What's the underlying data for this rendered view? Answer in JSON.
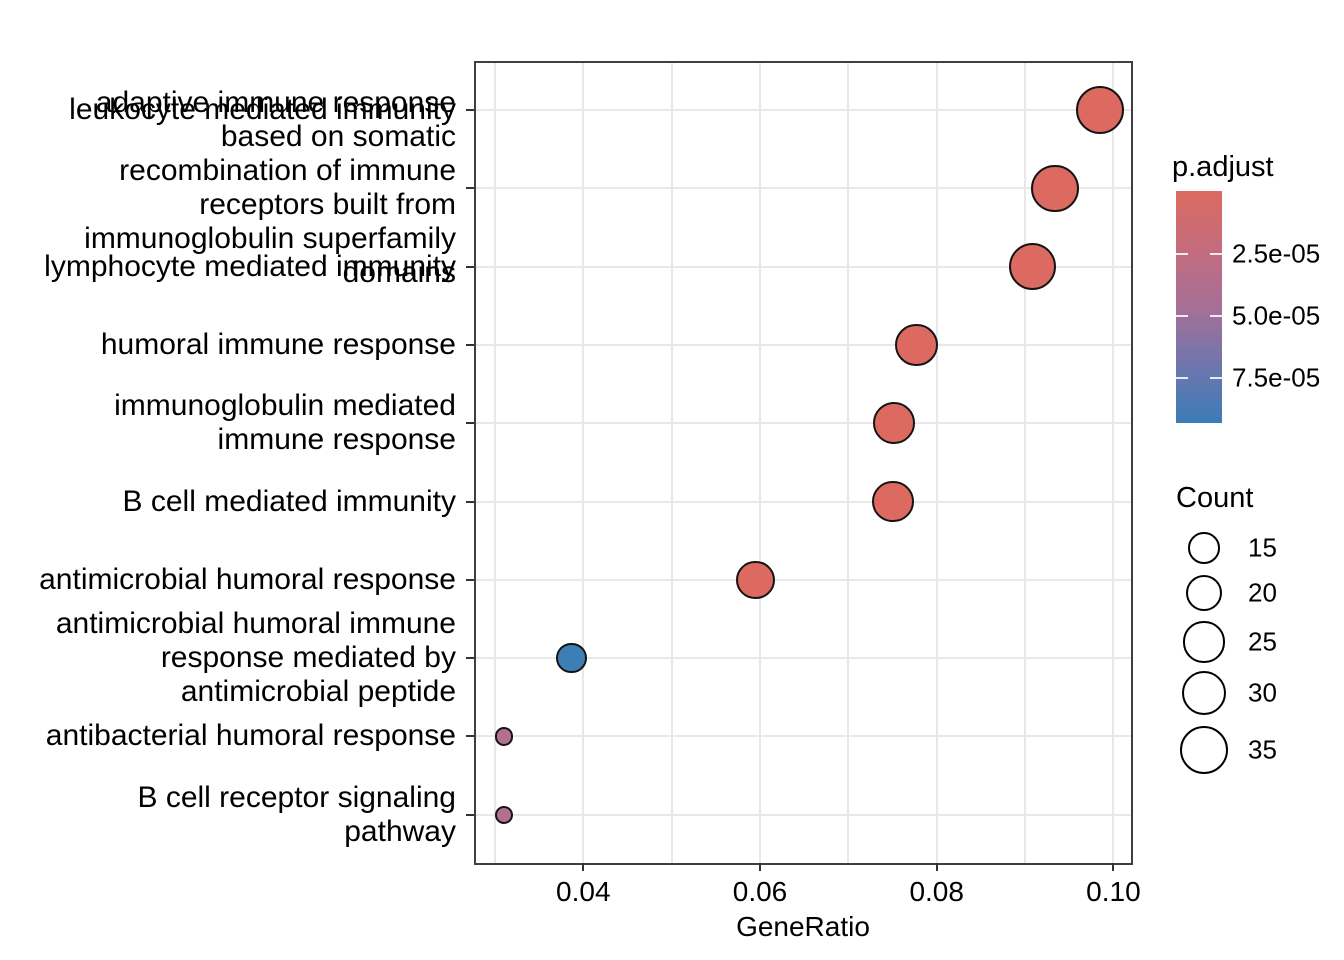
{
  "figure": {
    "background": "#ffffff",
    "text_color": "#000000",
    "grid_color": "#e8e8e8",
    "panel_border_color": "#3f3f3f"
  },
  "chart_data": {
    "type": "scatter",
    "subtype": "go-enrichment-dotplot",
    "title": "",
    "xlabel": "GeneRatio",
    "ylabel": "",
    "grid": "on",
    "legend_position": "right",
    "xlim": [
      0.0279,
      0.102
    ],
    "x_ticks": [
      0.04,
      0.06,
      0.08,
      0.1
    ],
    "x_tick_labels": [
      "0.04",
      "0.06",
      "0.08",
      "0.10"
    ],
    "x_gridlines": [
      0.03,
      0.04,
      0.05,
      0.06,
      0.07,
      0.08,
      0.09,
      0.1
    ],
    "categories": [
      "leukocyte mediated immunity",
      "adaptive immune response based on somatic recombination of immune receptors built from immunoglobulin superfamily domains",
      "lymphocyte mediated immunity",
      "humoral immune response",
      "immunoglobulin mediated immune response",
      "B cell mediated immunity",
      "antimicrobial humoral response",
      "antimicrobial humoral immune response mediated by antimicrobial peptide",
      "antibacterial humoral response",
      "B cell receptor signaling pathway"
    ],
    "category_label_lines": [
      [
        "leukocyte mediated immunity"
      ],
      [
        "adaptive immune response",
        "based on somatic",
        "recombination of immune",
        "receptors built from",
        "immunoglobulin superfamily",
        "domains"
      ],
      [
        "lymphocyte mediated immunity"
      ],
      [
        "humoral immune response"
      ],
      [
        "immunoglobulin mediated",
        "immune response"
      ],
      [
        "B cell mediated immunity"
      ],
      [
        "antimicrobial humoral response"
      ],
      [
        "antimicrobial humoral immune",
        "response mediated by",
        "antimicrobial peptide"
      ],
      [
        "antibacterial humoral response"
      ],
      [
        "B cell receptor signaling",
        "pathway"
      ]
    ],
    "points": [
      {
        "label": "leukocyte mediated immunity",
        "generatio": 0.0985,
        "count": 35,
        "p_adjust": 4e-06,
        "color": "#dd6a61"
      },
      {
        "label": "adaptive immune response based on somatic recombination of immune receptors built from immunoglobulin superfamily domains",
        "generatio": 0.0934,
        "count": 33,
        "p_adjust": 4e-06,
        "color": "#dd6a61"
      },
      {
        "label": "lymphocyte mediated immunity",
        "generatio": 0.0908,
        "count": 33,
        "p_adjust": 4e-06,
        "color": "#dd6a61"
      },
      {
        "label": "humoral immune response",
        "generatio": 0.0777,
        "count": 27,
        "p_adjust": 8e-06,
        "color": "#dd6a61"
      },
      {
        "label": "immunoglobulin mediated immune response",
        "generatio": 0.0752,
        "count": 26,
        "p_adjust": 6e-06,
        "color": "#dd6a61"
      },
      {
        "label": "B cell mediated immunity",
        "generatio": 0.0751,
        "count": 26,
        "p_adjust": 6e-06,
        "color": "#dd6a61"
      },
      {
        "label": "antimicrobial humoral response",
        "generatio": 0.0595,
        "count": 22,
        "p_adjust": 1.2e-05,
        "color": "#dd6a61"
      },
      {
        "label": "antimicrobial humoral immune response mediated by antimicrobial peptide",
        "generatio": 0.0387,
        "count": 14,
        "p_adjust": 8.8e-05,
        "color": "#3d7eb5"
      },
      {
        "label": "antibacterial humoral response",
        "generatio": 0.031,
        "count": 5,
        "p_adjust": 4.2e-05,
        "color": "#b2708e"
      },
      {
        "label": "B cell receptor signaling pathway",
        "generatio": 0.031,
        "count": 5,
        "p_adjust": 4.2e-05,
        "color": "#b2708e"
      }
    ],
    "legend_p_adjust": {
      "title": "p.adjust",
      "tick_labels": [
        "2.5e-05",
        "5.0e-05",
        "7.5e-05"
      ],
      "tick_values": [
        2.5e-05,
        5e-05,
        7.5e-05
      ],
      "range": [
        0,
        9.3e-05
      ],
      "gradient_top_to_bottom": [
        "#db6a60",
        "#c46c7d",
        "#a66f96",
        "#7076ad",
        "#3c7cb7"
      ]
    },
    "legend_count": {
      "title": "Count",
      "values": [
        15,
        20,
        25,
        30,
        35
      ],
      "labels": [
        "15",
        "20",
        "25",
        "30",
        "35"
      ],
      "circle_fill": "#ffffff",
      "circle_stroke": "#000000"
    }
  }
}
